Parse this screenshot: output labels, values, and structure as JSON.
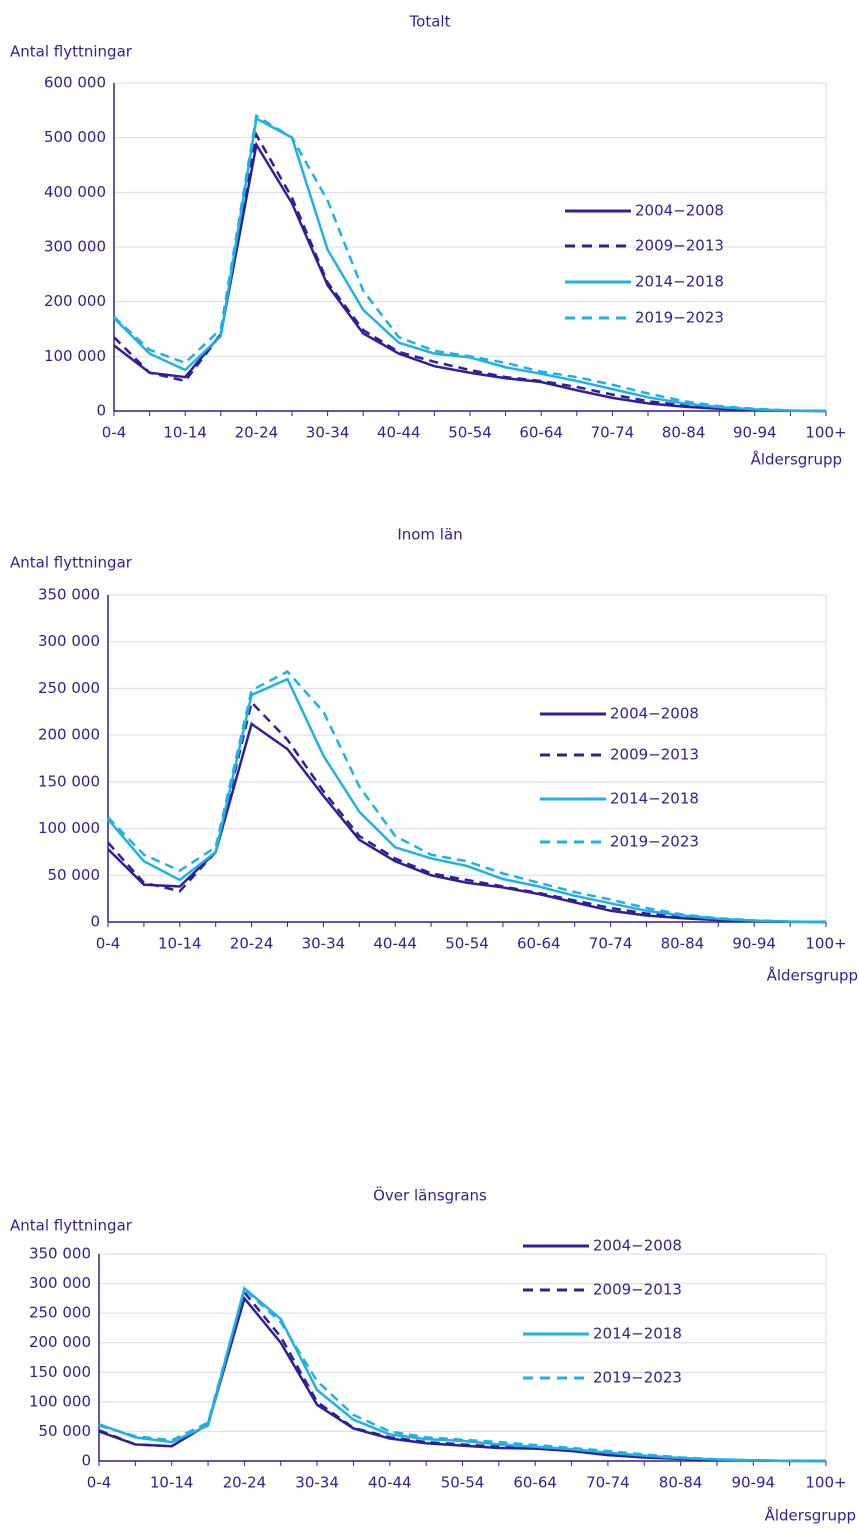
{
  "chart_data": [
    {
      "type": "line",
      "title": "Totalt",
      "ylabel": "Antal flyttningar",
      "xlabel": "Åldersgrupp",
      "categories": [
        "0-4",
        null,
        "10-14",
        null,
        "20-24",
        null,
        "30-34",
        null,
        "40-44",
        null,
        "50-54",
        null,
        "60-64",
        null,
        "70-74",
        null,
        "80-84",
        null,
        "90-94",
        null,
        "100+"
      ],
      "ylim": [
        0,
        600000
      ],
      "yticks": [
        0,
        {
          "value": 100000,
          "label": "100 000"
        },
        {
          "value": 200000,
          "label": "200 000"
        },
        {
          "value": 300000,
          "label": "300 000"
        },
        {
          "value": 400000,
          "label": "400 000"
        },
        {
          "value": 500000,
          "label": "500 000"
        },
        {
          "value": 600000,
          "label": "600 000"
        }
      ],
      "grid": true,
      "legend": "right",
      "series": [
        {
          "name": "2004−2008",
          "color": "#2e1f9a",
          "dashed": false,
          "values": [
            120000,
            70000,
            62000,
            140000,
            487000,
            380000,
            230000,
            142000,
            105000,
            82000,
            70000,
            60000,
            53000,
            38000,
            24000,
            14000,
            8000,
            4000,
            1500,
            400,
            0
          ]
        },
        {
          "name": "2009−2013",
          "color": "#2e1f9a",
          "dashed": true,
          "values": [
            135000,
            70000,
            55000,
            140000,
            505000,
            390000,
            235000,
            148000,
            108000,
            90000,
            75000,
            62000,
            55000,
            44000,
            30000,
            18000,
            10000,
            5000,
            2000,
            500,
            0
          ]
        },
        {
          "name": "2014−2018",
          "color": "#1eb1e6",
          "dashed": false,
          "values": [
            170000,
            105000,
            75000,
            137000,
            535000,
            500000,
            295000,
            185000,
            125000,
            105000,
            98000,
            80000,
            68000,
            55000,
            40000,
            25000,
            14000,
            7000,
            3000,
            800,
            0
          ]
        },
        {
          "name": "2019−2023",
          "color": "#1eb1e6",
          "dashed": true,
          "values": [
            172000,
            112000,
            88000,
            150000,
            540000,
            500000,
            385000,
            220000,
            135000,
            110000,
            100000,
            88000,
            72000,
            62000,
            48000,
            32000,
            18000,
            9000,
            4000,
            1000,
            0
          ]
        }
      ]
    },
    {
      "type": "line",
      "title": "Inom län",
      "ylabel": "Antal flyttningar",
      "xlabel": "Åldersgrupp",
      "categories": [
        "0-4",
        null,
        "10-14",
        null,
        "20-24",
        null,
        "30-34",
        null,
        "40-44",
        null,
        "50-54",
        null,
        "60-64",
        null,
        "70-74",
        null,
        "80-84",
        null,
        "90-94",
        null,
        "100+"
      ],
      "ylim": [
        0,
        350000
      ],
      "yticks": [
        0,
        {
          "value": 50000,
          "label": "50 000"
        },
        {
          "value": 100000,
          "label": "100 000"
        },
        {
          "value": 150000,
          "label": "150 000"
        },
        {
          "value": 200000,
          "label": "200 000"
        },
        {
          "value": 250000,
          "label": "250 000"
        },
        {
          "value": 300000,
          "label": "300 000"
        },
        {
          "value": 350000,
          "label": "350 000"
        }
      ],
      "grid": true,
      "legend": "right",
      "series": [
        {
          "name": "2004−2008",
          "color": "#2e1f9a",
          "dashed": false,
          "values": [
            78000,
            40000,
            38000,
            75000,
            212000,
            185000,
            135000,
            88000,
            65000,
            50000,
            42000,
            37000,
            30000,
            21000,
            12000,
            7000,
            4000,
            2000,
            800,
            200,
            0
          ]
        },
        {
          "name": "2009−2013",
          "color": "#2e1f9a",
          "dashed": true,
          "values": [
            85000,
            42000,
            33000,
            75000,
            235000,
            195000,
            140000,
            92000,
            68000,
            52000,
            45000,
            38000,
            31000,
            23000,
            15000,
            9000,
            5000,
            2500,
            1000,
            300,
            0
          ]
        },
        {
          "name": "2014−2018",
          "color": "#1eb1e6",
          "dashed": false,
          "values": [
            110000,
            65000,
            45000,
            75000,
            243000,
            260000,
            178000,
            118000,
            80000,
            68000,
            60000,
            46000,
            38000,
            28000,
            20000,
            12000,
            7000,
            3500,
            1500,
            400,
            0
          ]
        },
        {
          "name": "2019−2023",
          "color": "#1eb1e6",
          "dashed": true,
          "values": [
            112000,
            72000,
            55000,
            80000,
            248000,
            268000,
            225000,
            145000,
            92000,
            72000,
            65000,
            52000,
            42000,
            32000,
            24000,
            15000,
            8000,
            4000,
            1800,
            500,
            0
          ]
        }
      ]
    },
    {
      "type": "line",
      "title": "Över länsgrans",
      "ylabel": "Antal flyttningar",
      "xlabel": "Åldersgrupp",
      "categories": [
        "0-4",
        null,
        "10-14",
        null,
        "20-24",
        null,
        "30-34",
        null,
        "40-44",
        null,
        "50-54",
        null,
        "60-64",
        null,
        "70-74",
        null,
        "80-84",
        null,
        "90-94",
        null,
        "100+"
      ],
      "ylim": [
        0,
        350000
      ],
      "yticks": [
        0,
        {
          "value": 50000,
          "label": "50 000"
        },
        {
          "value": 100000,
          "label": "100 000"
        },
        {
          "value": 150000,
          "label": "150 000"
        },
        {
          "value": 200000,
          "label": "200 000"
        },
        {
          "value": 250000,
          "label": "250 000"
        },
        {
          "value": 300000,
          "label": "300 000"
        },
        {
          "value": 350000,
          "label": "350 000"
        }
      ],
      "grid": true,
      "legend": "right",
      "series": [
        {
          "name": "2004−2008",
          "color": "#2e1f9a",
          "dashed": false,
          "values": [
            50000,
            28000,
            25000,
            62000,
            275000,
            200000,
            95000,
            55000,
            38000,
            30000,
            26000,
            22000,
            21000,
            17000,
            10000,
            6000,
            3500,
            1800,
            800,
            200,
            0
          ]
        },
        {
          "name": "2009−2013",
          "color": "#2e1f9a",
          "dashed": true,
          "values": [
            52000,
            28000,
            25000,
            62000,
            285000,
            210000,
            100000,
            56000,
            40000,
            32000,
            28000,
            24000,
            22000,
            18000,
            12000,
            7000,
            4000,
            2000,
            900,
            200,
            0
          ]
        },
        {
          "name": "2014−2018",
          "color": "#1eb1e6",
          "dashed": false,
          "values": [
            62000,
            40000,
            32000,
            60000,
            292000,
            240000,
            120000,
            70000,
            45000,
            37000,
            34000,
            28000,
            24000,
            20000,
            14000,
            9000,
            5000,
            2500,
            1000,
            300,
            0
          ]
        },
        {
          "name": "2019−2023",
          "color": "#1eb1e6",
          "dashed": true,
          "values": [
            60000,
            42000,
            35000,
            65000,
            290000,
            235000,
            135000,
            78000,
            50000,
            40000,
            36000,
            32000,
            27000,
            22000,
            17000,
            11000,
            6000,
            3000,
            1200,
            300,
            0
          ]
        }
      ]
    }
  ]
}
